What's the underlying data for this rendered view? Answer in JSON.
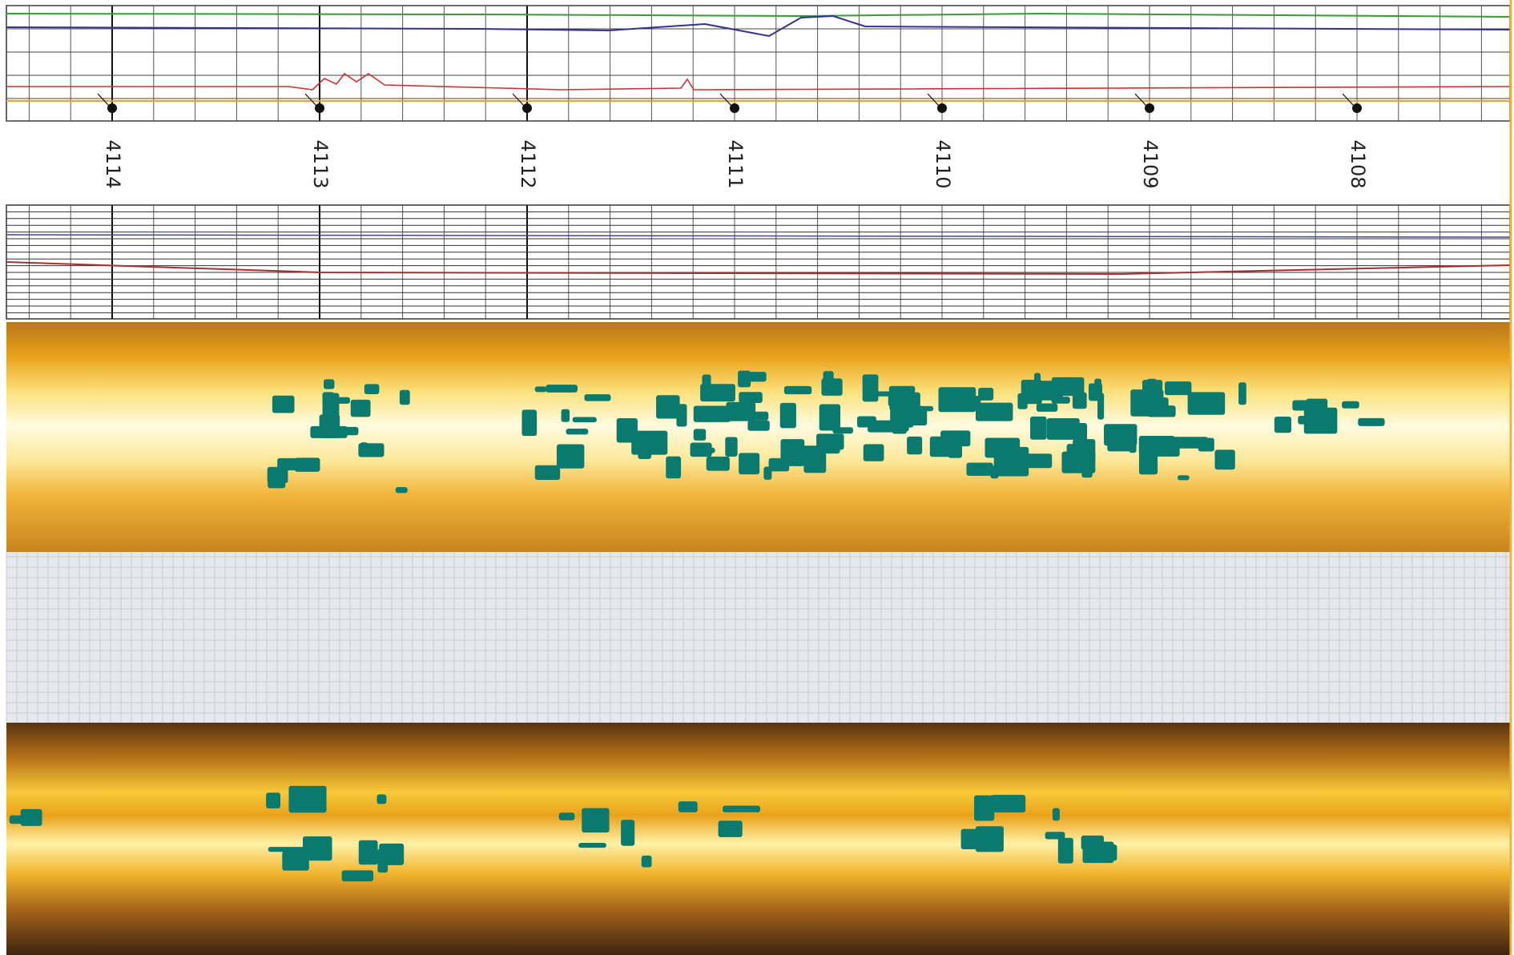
{
  "depth_labels": [
    "4114",
    "4113",
    "4112",
    "4111",
    "4110",
    "4109",
    "4108"
  ]
}
